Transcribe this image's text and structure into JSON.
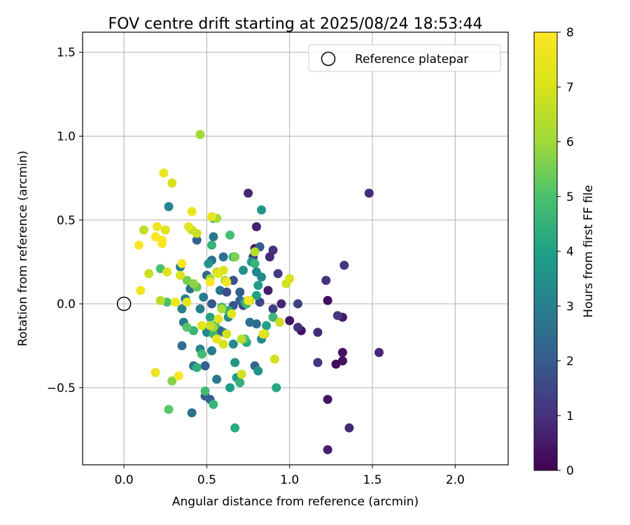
{
  "chart_data": {
    "type": "scatter",
    "title": "FOV centre drift starting at 2025/08/24 18:53:44",
    "xlabel": "Angular distance from reference (arcmin)",
    "ylabel": "Rotation from reference (arcmin)",
    "xlim": [
      -0.25,
      2.32
    ],
    "ylim": [
      -0.96,
      1.62
    ],
    "xticks": [
      0.0,
      0.5,
      1.0,
      1.5,
      2.0
    ],
    "xtick_labels": [
      "0.0",
      "0.5",
      "1.0",
      "1.5",
      "2.0"
    ],
    "yticks": [
      -0.5,
      0.0,
      0.5,
      1.0,
      1.5
    ],
    "ytick_labels": [
      "−0.5",
      "0.0",
      "0.5",
      "1.0",
      "1.5"
    ],
    "grid": true,
    "legend": {
      "placement": "top-right",
      "entries": [
        "Reference platepar"
      ]
    },
    "reference_point": {
      "name": "Reference platepar",
      "x": 0.0,
      "y": 0.0
    },
    "colorbar": {
      "label": "Hours from first FF file",
      "range": [
        0,
        8
      ],
      "ticks": [
        0,
        1,
        2,
        3,
        4,
        5,
        6,
        7,
        8
      ],
      "tick_labels": [
        "0",
        "1",
        "2",
        "3",
        "4",
        "5",
        "6",
        "7",
        "8"
      ],
      "colormap": "viridis"
    },
    "series": [
      {
        "points": [
          [
            1.48,
            0.66,
            0.9
          ],
          [
            1.33,
            0.23,
            1.1
          ],
          [
            1.32,
            -0.08,
            0.5
          ],
          [
            1.32,
            -0.29,
            0.3
          ],
          [
            1.32,
            -0.34,
            0.3
          ],
          [
            1.29,
            -0.07,
            1.2
          ],
          [
            1.28,
            -0.36,
            0.2
          ],
          [
            1.23,
            0.02,
            0.2
          ],
          [
            1.22,
            0.14,
            1.0
          ],
          [
            1.23,
            -0.87,
            0.6
          ],
          [
            1.23,
            -0.57,
            0.4
          ],
          [
            1.36,
            -0.74,
            0.8
          ],
          [
            1.54,
            -0.29,
            0.8
          ],
          [
            1.17,
            -0.17,
            0.9
          ],
          [
            1.17,
            -0.35,
            1.1
          ],
          [
            1.07,
            -0.16,
            0.3
          ],
          [
            1.05,
            -0.14,
            1.0
          ],
          [
            1.05,
            0.0,
            1.3
          ],
          [
            1.0,
            -0.1,
            0.4
          ],
          [
            0.95,
            0.0,
            0.8
          ],
          [
            0.93,
            0.18,
            1.2
          ],
          [
            0.9,
            0.32,
            1.0
          ],
          [
            0.88,
            0.28,
            0.8
          ],
          [
            0.87,
            0.08,
            0.6
          ],
          [
            0.9,
            -0.03,
            1.4
          ],
          [
            0.9,
            -0.08,
            1.7
          ],
          [
            0.82,
            0.01,
            1.5
          ],
          [
            0.8,
            0.46,
            0.7
          ],
          [
            0.79,
            0.33,
            0.5
          ],
          [
            0.75,
            0.66,
            0.8
          ],
          [
            0.78,
            0.28,
            1.3
          ],
          [
            0.82,
            0.34,
            2.0
          ],
          [
            0.8,
            -0.12,
            2.4
          ],
          [
            0.76,
            -0.11,
            2.6
          ],
          [
            0.72,
            -0.01,
            1.6
          ],
          [
            0.7,
            0.07,
            2.1
          ],
          [
            0.66,
            -0.01,
            1.9
          ],
          [
            0.6,
            0.28,
            2.6
          ],
          [
            0.58,
            0.08,
            2.7
          ],
          [
            0.54,
            0.4,
            2.8
          ],
          [
            0.53,
            0.26,
            2.6
          ],
          [
            0.5,
            0.17,
            2.3
          ],
          [
            0.48,
            0.04,
            2.9
          ],
          [
            0.46,
            -0.03,
            3.0
          ],
          [
            0.44,
            0.38,
            2.2
          ],
          [
            0.4,
            0.09,
            2.5
          ],
          [
            0.37,
            0.03,
            2.9
          ],
          [
            0.34,
            0.22,
            3.0
          ],
          [
            0.27,
            0.58,
            3.2
          ],
          [
            0.35,
            -0.03,
            3.1
          ],
          [
            0.36,
            -0.11,
            2.9
          ],
          [
            0.35,
            -0.25,
            2.5
          ],
          [
            0.42,
            -0.37,
            2.7
          ],
          [
            0.49,
            -0.37,
            2.1
          ],
          [
            0.49,
            -0.55,
            2.0
          ],
          [
            0.52,
            -0.57,
            2.2
          ],
          [
            0.41,
            -0.65,
            2.6
          ],
          [
            0.56,
            -0.45,
            2.8
          ],
          [
            0.53,
            -0.28,
            3.0
          ],
          [
            0.5,
            -0.17,
            3.2
          ],
          [
            0.6,
            -0.17,
            3.3
          ],
          [
            0.63,
            -0.08,
            3.4
          ],
          [
            0.58,
            -0.16,
            2.4
          ],
          [
            0.46,
            -0.27,
            3.1
          ],
          [
            0.53,
            0.0,
            1.9
          ],
          [
            0.62,
            0.07,
            1.7
          ],
          [
            0.66,
            0.14,
            1.8
          ],
          [
            0.7,
            0.02,
            2.2
          ],
          [
            0.79,
            -0.37,
            2.3
          ],
          [
            0.83,
            -0.21,
            3.3
          ],
          [
            0.81,
            -0.4,
            3.6
          ],
          [
            0.83,
            0.56,
            3.7
          ],
          [
            0.83,
            0.16,
            3.4
          ],
          [
            0.77,
            0.25,
            3.8
          ],
          [
            0.79,
            0.24,
            4.6
          ],
          [
            0.72,
            0.2,
            3.5
          ],
          [
            0.73,
            0.01,
            4.1
          ],
          [
            0.66,
            0.28,
            4.3
          ],
          [
            0.64,
            -0.5,
            3.9
          ],
          [
            0.68,
            -0.44,
            3.8
          ],
          [
            0.67,
            -0.35,
            3.7
          ],
          [
            0.66,
            -0.24,
            3.4
          ],
          [
            0.63,
            -0.04,
            4.4
          ],
          [
            0.59,
            -0.02,
            4.5
          ],
          [
            0.55,
            -0.13,
            4.6
          ],
          [
            0.54,
            -0.18,
            4.7
          ],
          [
            0.52,
            -0.08,
            4.1
          ],
          [
            0.51,
            0.24,
            3.6
          ],
          [
            0.47,
            -0.3,
            4.8
          ],
          [
            0.44,
            -0.38,
            4.4
          ],
          [
            0.42,
            -0.16,
            4.6
          ],
          [
            0.38,
            -0.14,
            5.1
          ],
          [
            0.44,
            0.1,
            5.3
          ],
          [
            0.53,
            0.35,
            4.5
          ],
          [
            0.54,
            0.51,
            4.4
          ],
          [
            0.64,
            0.41,
            4.9
          ],
          [
            0.67,
            -0.74,
            4.3
          ],
          [
            0.7,
            -0.47,
            4.5
          ],
          [
            0.74,
            -0.23,
            4.2
          ],
          [
            0.74,
            0.0,
            4.8
          ],
          [
            0.8,
            0.05,
            4.0
          ],
          [
            0.8,
            0.19,
            3.2
          ],
          [
            0.81,
            0.11,
            3.9
          ],
          [
            0.86,
            -0.13,
            4.0
          ],
          [
            0.9,
            -0.08,
            4.7
          ],
          [
            0.92,
            -0.5,
            4.2
          ],
          [
            0.54,
            -0.6,
            4.6
          ],
          [
            0.49,
            -0.52,
            4.8
          ],
          [
            0.26,
            0.01,
            5.0
          ],
          [
            0.22,
            0.21,
            5.0
          ],
          [
            0.38,
            0.14,
            5.5
          ],
          [
            0.42,
            0.12,
            5.8
          ],
          [
            0.46,
            1.01,
            6.0
          ],
          [
            0.56,
            0.51,
            6.0
          ],
          [
            0.29,
            -0.46,
            5.7
          ],
          [
            0.27,
            -0.63,
            5.2
          ],
          [
            0.52,
            0.15,
            5.9
          ],
          [
            0.54,
            -0.14,
            5.9
          ],
          [
            0.61,
            0.14,
            6.3
          ],
          [
            0.73,
            -0.21,
            5.0
          ],
          [
            0.76,
            0.02,
            6.8
          ],
          [
            0.85,
            -0.18,
            6.6
          ],
          [
            0.94,
            -0.11,
            6.8
          ],
          [
            0.91,
            -0.33,
            6.9
          ],
          [
            0.98,
            0.12,
            6.9
          ],
          [
            1.0,
            0.15,
            7.1
          ],
          [
            0.79,
            0.31,
            6.4
          ],
          [
            0.71,
            -0.21,
            6.5
          ],
          [
            0.67,
            0.28,
            5.6
          ],
          [
            0.56,
            0.19,
            6.5
          ],
          [
            0.6,
            0.2,
            7.1
          ],
          [
            0.59,
            -0.03,
            6.2
          ],
          [
            0.62,
            -0.18,
            6.9
          ],
          [
            0.6,
            -0.24,
            7.1
          ],
          [
            0.57,
            -0.09,
            7.2
          ],
          [
            0.52,
            -0.13,
            6.7
          ],
          [
            0.47,
            -0.13,
            7.3
          ],
          [
            0.44,
            0.42,
            6.8
          ],
          [
            0.41,
            0.44,
            6.7
          ],
          [
            0.39,
            0.46,
            7.3
          ],
          [
            0.41,
            0.55,
            7.5
          ],
          [
            0.29,
            0.72,
            7.0
          ],
          [
            0.24,
            0.78,
            7.6
          ],
          [
            0.15,
            0.18,
            6.7
          ],
          [
            0.12,
            0.44,
            6.6
          ],
          [
            0.22,
            0.02,
            6.5
          ],
          [
            0.25,
            0.44,
            7.2
          ],
          [
            0.26,
            0.19,
            7.2
          ],
          [
            0.34,
            0.17,
            7.1
          ],
          [
            0.35,
            0.24,
            7.8
          ],
          [
            0.31,
            0.01,
            7.6
          ],
          [
            0.38,
            0.01,
            7.3
          ],
          [
            0.52,
            0.13,
            7.9
          ],
          [
            0.53,
            0.52,
            7.6
          ],
          [
            0.57,
            0.18,
            7.4
          ],
          [
            0.62,
            0.13,
            7.7
          ],
          [
            0.65,
            -0.06,
            7.3
          ],
          [
            0.71,
            -0.42,
            6.9
          ],
          [
            0.75,
            0.02,
            7.7
          ],
          [
            0.84,
            -0.18,
            7.3
          ],
          [
            0.19,
            0.4,
            7.8
          ],
          [
            0.2,
            0.46,
            7.6
          ],
          [
            0.23,
            0.36,
            7.9
          ],
          [
            0.23,
            0.38,
            8.0
          ],
          [
            0.09,
            0.35,
            7.9
          ],
          [
            0.1,
            0.08,
            7.7
          ],
          [
            0.19,
            -0.41,
            7.5
          ],
          [
            0.33,
            -0.43,
            7.9
          ],
          [
            0.56,
            -0.21,
            7.5
          ]
        ]
      }
    ]
  }
}
